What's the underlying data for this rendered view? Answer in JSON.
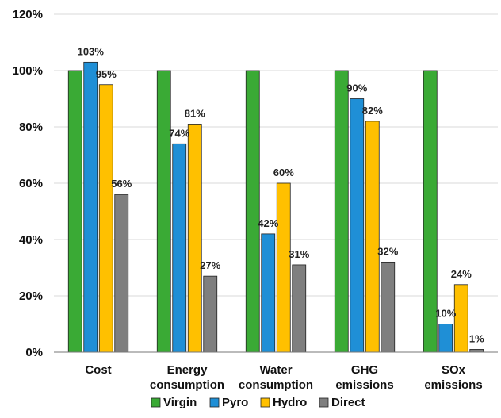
{
  "chart_data": {
    "type": "bar",
    "categories": [
      [
        "Cost"
      ],
      [
        "Energy",
        "consumption"
      ],
      [
        "Water",
        "consumption"
      ],
      [
        "GHG",
        "emissions"
      ],
      [
        "SOx",
        "emissions"
      ]
    ],
    "series": [
      {
        "name": "Virgin",
        "color": "#3aaa35",
        "values": [
          100,
          100,
          100,
          100,
          100
        ],
        "labels": [
          "",
          "",
          "",
          "",
          ""
        ]
      },
      {
        "name": "Pyro",
        "color": "#1f8fd6",
        "values": [
          103,
          74,
          42,
          90,
          10
        ],
        "labels": [
          "103%",
          "74%",
          "42%",
          "90%",
          "10%"
        ]
      },
      {
        "name": "Hydro",
        "color": "#ffc000",
        "values": [
          95,
          81,
          60,
          82,
          24
        ],
        "labels": [
          "95%",
          "81%",
          "60%",
          "82%",
          "24%"
        ]
      },
      {
        "name": "Direct",
        "color": "#7f7f7f",
        "values": [
          56,
          27,
          31,
          32,
          1
        ],
        "labels": [
          "56%",
          "27%",
          "31%",
          "32%",
          "1%"
        ]
      }
    ],
    "yticks": [
      "0%",
      "20%",
      "40%",
      "60%",
      "80%",
      "100%",
      "120%"
    ],
    "ylim": [
      0,
      120
    ],
    "grid": true,
    "legend": "bottom",
    "xlabel": "",
    "ylabel": ""
  }
}
